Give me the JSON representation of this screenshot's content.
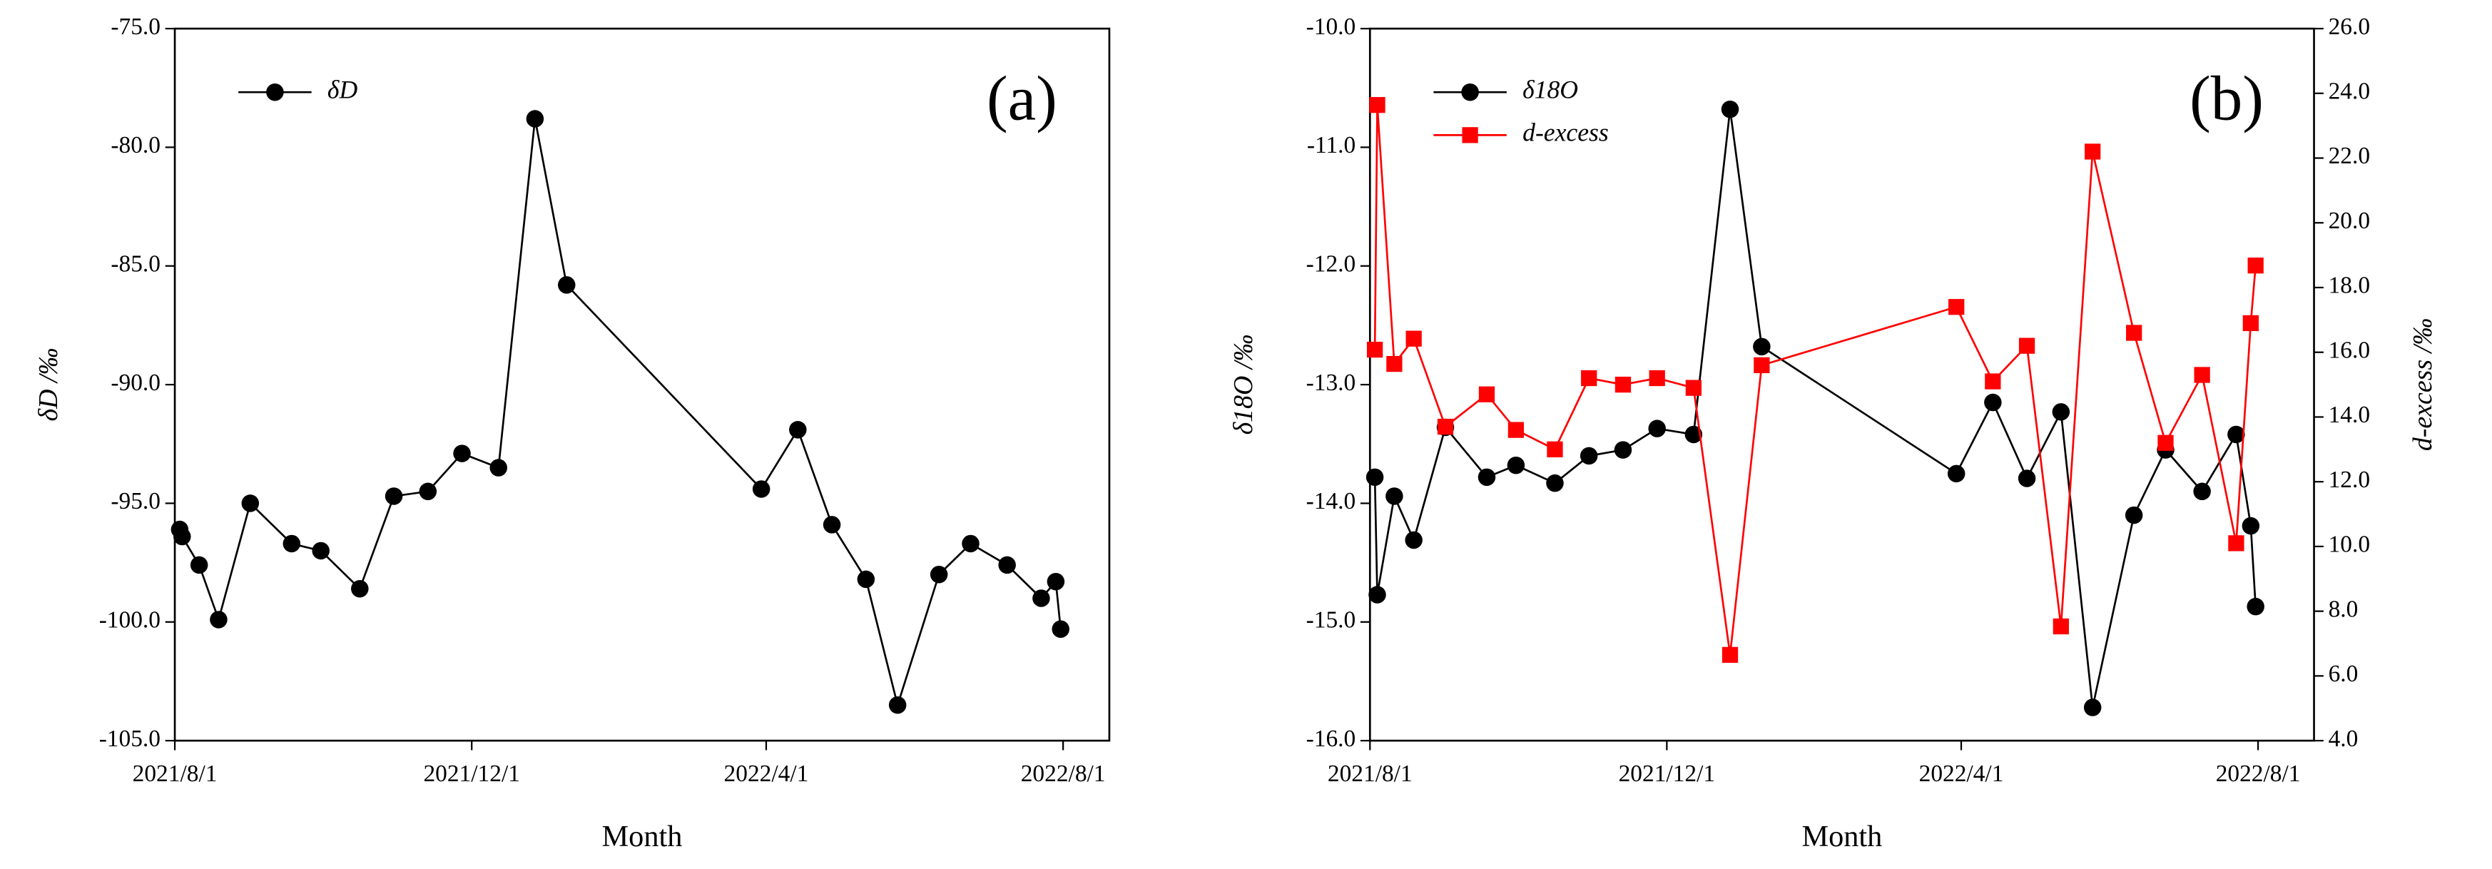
{
  "chart_data": [
    {
      "type": "line",
      "annotation": "(a)",
      "xlabel": "Month",
      "ylabel": "δD /‰",
      "x": [
        "2021/8/3",
        "2021/8/4",
        "2021/8/11",
        "2021/8/19",
        "2021/9/1",
        "2021/9/18",
        "2021/9/30",
        "2021/10/16",
        "2021/10/30",
        "2021/11/13",
        "2021/11/27",
        "2021/12/12",
        "2021/12/27",
        "2022/1/9",
        "2022/3/30",
        "2022/4/14",
        "2022/4/28",
        "2022/5/12",
        "2022/5/25",
        "2022/6/11",
        "2022/6/24",
        "2022/7/9",
        "2022/7/23",
        "2022/7/29",
        "2022/7/31"
      ],
      "series": [
        {
          "name": "δD",
          "color": "#000000",
          "marker": "circle",
          "values": [
            -96.1,
            -96.4,
            -97.6,
            -99.9,
            -95.0,
            -96.7,
            -97.0,
            -98.6,
            -94.7,
            -94.5,
            -92.9,
            -93.5,
            -78.8,
            -85.8,
            -94.4,
            -91.9,
            -95.9,
            -98.2,
            -103.5,
            -98.0,
            -96.7,
            -97.6,
            -99.0,
            -98.3,
            -100.3
          ]
        }
      ],
      "xlim": [
        "2021/8/1",
        "2022/8/20"
      ],
      "xticks": [
        "2021/8/1",
        "2021/12/1",
        "2022/4/1",
        "2022/8/1"
      ],
      "ylim": [
        -105,
        -75
      ],
      "yticks": [
        {
          "value": -105,
          "label": "-105.0"
        },
        {
          "value": -100,
          "label": "-100.0"
        },
        {
          "value": -95,
          "label": "-95.0"
        },
        {
          "value": -90,
          "label": "-90.0"
        },
        {
          "value": -85,
          "label": "-85.0"
        },
        {
          "value": -80,
          "label": "-80.0"
        },
        {
          "value": -75,
          "label": "-75.0"
        }
      ],
      "legend": "upper left"
    },
    {
      "type": "line",
      "annotation": "(b)",
      "xlabel": "Month",
      "ylabel": "δ18O /‰",
      "y2label": "d-excess /‰",
      "x": [
        "2021/8/3",
        "2021/8/4",
        "2021/8/11",
        "2021/8/19",
        "2021/9/1",
        "2021/9/18",
        "2021/9/30",
        "2021/10/16",
        "2021/10/30",
        "2021/11/13",
        "2021/11/27",
        "2021/12/12",
        "2021/12/27",
        "2022/1/9",
        "2022/3/30",
        "2022/4/14",
        "2022/4/28",
        "2022/5/12",
        "2022/5/25",
        "2022/6/11",
        "2022/6/24",
        "2022/7/9",
        "2022/7/23",
        "2022/7/29",
        "2022/7/31"
      ],
      "series": [
        {
          "name": "δ18O",
          "color": "#000000",
          "marker": "circle",
          "values": [
            -13.78,
            -14.77,
            -13.94,
            -14.31,
            -13.36,
            -13.78,
            -13.68,
            -13.83,
            -13.6,
            -13.55,
            -13.37,
            -13.42,
            -10.68,
            -12.68,
            -13.75,
            -13.15,
            -13.79,
            -13.23,
            -15.72,
            -14.1,
            -13.55,
            -13.9,
            -13.42,
            -14.19,
            -14.87
          ]
        },
        {
          "name": "d-excess",
          "color": "#ff0000",
          "marker": "square",
          "axis": "y2",
          "values": [
            16.08,
            23.64,
            15.64,
            16.42,
            13.7,
            14.7,
            13.6,
            13.0,
            15.2,
            15.0,
            15.2,
            14.9,
            6.65,
            15.6,
            17.4,
            15.1,
            16.2,
            7.53,
            22.2,
            16.6,
            13.2,
            15.3,
            10.1,
            16.9,
            18.68
          ]
        }
      ],
      "xlim": [
        "2021/8/1",
        "2022/8/24"
      ],
      "xticks": [
        "2021/8/1",
        "2021/12/1",
        "2022/4/1",
        "2022/8/1"
      ],
      "ylim": [
        -16,
        -10
      ],
      "yticks": [
        {
          "value": -16,
          "label": "-16.0"
        },
        {
          "value": -15,
          "label": "-15.0"
        },
        {
          "value": -14,
          "label": "-14.0"
        },
        {
          "value": -13,
          "label": "-13.0"
        },
        {
          "value": -12,
          "label": "-12.0"
        },
        {
          "value": -11,
          "label": "-11.0"
        },
        {
          "value": -10,
          "label": "-10.0"
        }
      ],
      "y2lim": [
        4,
        26
      ],
      "y2ticks": [
        {
          "value": 4,
          "label": "4.0"
        },
        {
          "value": 6,
          "label": "6.0"
        },
        {
          "value": 8,
          "label": "8.0"
        },
        {
          "value": 10,
          "label": "10.0"
        },
        {
          "value": 12,
          "label": "12.0"
        },
        {
          "value": 14,
          "label": "14.0"
        },
        {
          "value": 16,
          "label": "16.0"
        },
        {
          "value": 18,
          "label": "18.0"
        },
        {
          "value": 20,
          "label": "20.0"
        },
        {
          "value": 22,
          "label": "22.0"
        },
        {
          "value": 24,
          "label": "24.0"
        },
        {
          "value": 26,
          "label": "26.0"
        }
      ],
      "legend": "upper left"
    }
  ]
}
